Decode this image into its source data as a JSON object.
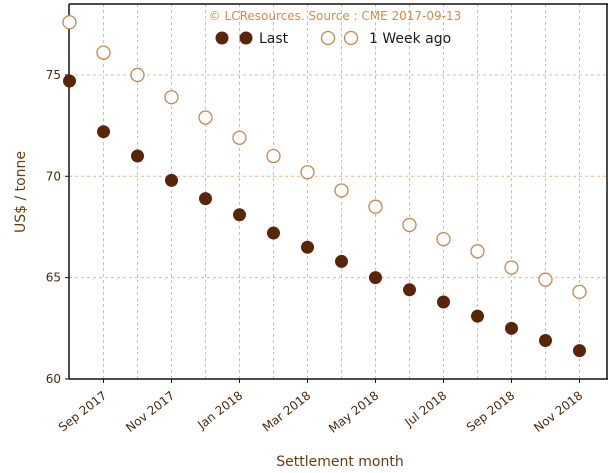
{
  "chart_data": {
    "type": "scatter",
    "annotation": "© LCResources. Source : CME 2017-09-13",
    "xlabel": "Settlement month",
    "ylabel": "US$ / tonne",
    "ylim": [
      60,
      78.5
    ],
    "yticks": [
      60,
      65,
      70,
      75
    ],
    "x": [
      "2017-08",
      "2017-09",
      "2017-10",
      "2017-11",
      "2017-12",
      "2018-01",
      "2018-02",
      "2018-03",
      "2018-04",
      "2018-05",
      "2018-06",
      "2018-07",
      "2018-08",
      "2018-09",
      "2018-10",
      "2018-11",
      "2018-12"
    ],
    "xtick_labels": [
      "Sep 2017",
      "Nov 2017",
      "Jan 2018",
      "Mar 2018",
      "May 2018",
      "Jul 2018",
      "Sep 2018",
      "Nov 2018"
    ],
    "xtick_positions": [
      "2017-09",
      "2017-11",
      "2018-01",
      "2018-03",
      "2018-05",
      "2018-07",
      "2018-09",
      "2018-11"
    ],
    "grid": true,
    "legend_position": "top",
    "series": [
      {
        "name": "Last",
        "style": "filled",
        "color": "#5a2408",
        "values": [
          74.7,
          72.2,
          71.0,
          69.8,
          68.9,
          68.1,
          67.2,
          66.5,
          65.8,
          65.0,
          64.4,
          63.8,
          63.1,
          62.5,
          61.9,
          61.4,
          null
        ]
      },
      {
        "name": "1 Week ago",
        "style": "hollow",
        "color": "#c9864c",
        "values": [
          77.6,
          76.1,
          75.0,
          73.9,
          72.9,
          71.9,
          71.0,
          70.2,
          69.3,
          68.5,
          67.6,
          66.9,
          66.3,
          65.5,
          64.9,
          64.3,
          null
        ]
      }
    ]
  }
}
